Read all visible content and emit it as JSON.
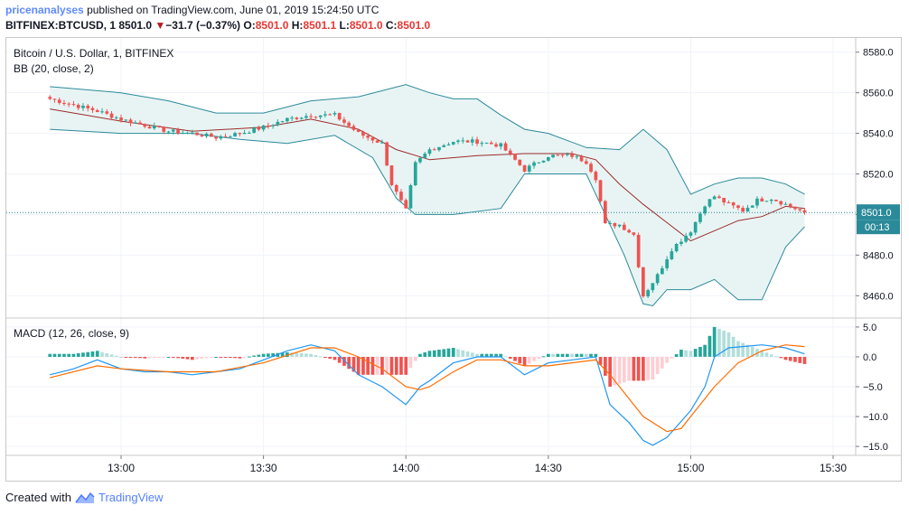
{
  "header": {
    "author": "pricenanalyses",
    "published": "published on TradingView.com, June 01, 2019 15:24:50 UTC",
    "symbol": "BITFINEX:BTCUSD, 1",
    "last": "8501.0",
    "arrow": "▼",
    "change": "−31.7 (−0.37%)",
    "o_label": "O:",
    "o_value": "8501.0",
    "h_label": "H:",
    "h_value": "8501.1",
    "l_label": "L:",
    "l_value": "8501.0",
    "c_label": "C:",
    "c_value": "8501.0"
  },
  "footer": {
    "created_with": "Created with",
    "brand": "TradingView"
  },
  "colors": {
    "up": "#26a69a",
    "down": "#ef5350",
    "bb_band": "#2b8a99",
    "bb_fill": "#e8f4f4",
    "bb_basis": "#9c2b2b",
    "macd_line": "#2196f3",
    "signal_line": "#ff6d00",
    "hist_up_strong": "#26a69a",
    "hist_up_weak": "#b2dfdb",
    "hist_down_strong": "#ef5350",
    "hist_down_weak": "#ffcdd2",
    "last_price_line": "#2b8a99"
  },
  "chart_data": [
    {
      "type": "candlestick",
      "title": "Bitcoin / U.S. Dollar, 1, BITFINEX",
      "indicator": "BB (20, close, 2)",
      "yticks": [
        8460.0,
        8480.0,
        8500.0,
        8520.0,
        8540.0,
        8560.0,
        8580.0
      ],
      "ytick_labels": [
        "8460.0",
        "8480.0",
        "8500.0",
        "8520.0",
        "8540.0",
        "8560.0",
        "8580.0"
      ],
      "ylim": [
        8449.0,
        8587.0
      ],
      "last_price": 8501.0,
      "last_price_label": "8501.0",
      "countdown": "00:13",
      "time_start": "12:45",
      "time_end": "15:24",
      "anchors": [
        [
          "12:45",
          8557
        ],
        [
          "12:50",
          8554
        ],
        [
          "12:55",
          8551
        ],
        [
          "13:00",
          8547
        ],
        [
          "13:05",
          8544
        ],
        [
          "13:10",
          8541
        ],
        [
          "13:15",
          8540
        ],
        [
          "13:20",
          8538
        ],
        [
          "13:25",
          8540
        ],
        [
          "13:30",
          8543
        ],
        [
          "13:35",
          8547
        ],
        [
          "13:40",
          8549
        ],
        [
          "13:45",
          8549
        ],
        [
          "13:50",
          8540
        ],
        [
          "13:55",
          8535
        ],
        [
          "13:57",
          8515
        ],
        [
          "14:00",
          8502
        ],
        [
          "14:02",
          8525
        ],
        [
          "14:05",
          8532
        ],
        [
          "14:10",
          8536
        ],
        [
          "14:15",
          8536
        ],
        [
          "14:20",
          8534
        ],
        [
          "14:25",
          8522
        ],
        [
          "14:30",
          8529
        ],
        [
          "14:35",
          8529
        ],
        [
          "14:38",
          8526
        ],
        [
          "14:40",
          8518
        ],
        [
          "14:42",
          8495
        ],
        [
          "14:45",
          8495
        ],
        [
          "14:48",
          8490
        ],
        [
          "14:50",
          8460
        ],
        [
          "14:53",
          8470
        ],
        [
          "14:56",
          8483
        ],
        [
          "15:00",
          8492
        ],
        [
          "15:03",
          8505
        ],
        [
          "15:05",
          8509
        ],
        [
          "15:08",
          8505
        ],
        [
          "15:11",
          8502
        ],
        [
          "15:14",
          8507
        ],
        [
          "15:17",
          8508
        ],
        [
          "15:20",
          8505
        ],
        [
          "15:22",
          8503
        ],
        [
          "15:24",
          8501
        ]
      ],
      "bb_upper": [
        [
          "12:45",
          8563
        ],
        [
          "13:00",
          8560
        ],
        [
          "13:10",
          8556
        ],
        [
          "13:20",
          8550
        ],
        [
          "13:30",
          8550
        ],
        [
          "13:40",
          8556
        ],
        [
          "13:50",
          8558
        ],
        [
          "14:00",
          8564
        ],
        [
          "14:05",
          8560
        ],
        [
          "14:10",
          8557
        ],
        [
          "14:15",
          8557
        ],
        [
          "14:20",
          8549
        ],
        [
          "14:25",
          8542
        ],
        [
          "14:30",
          8540
        ],
        [
          "14:38",
          8533
        ],
        [
          "14:45",
          8532
        ],
        [
          "14:50",
          8542
        ],
        [
          "14:55",
          8532
        ],
        [
          "15:00",
          8510
        ],
        [
          "15:05",
          8515
        ],
        [
          "15:10",
          8518
        ],
        [
          "15:15",
          8518
        ],
        [
          "15:20",
          8515
        ],
        [
          "15:24",
          8510
        ]
      ],
      "bb_basis": [
        [
          "12:45",
          8552
        ],
        [
          "13:00",
          8546
        ],
        [
          "13:15",
          8541
        ],
        [
          "13:30",
          8543
        ],
        [
          "13:40",
          8547
        ],
        [
          "13:50",
          8542
        ],
        [
          "13:58",
          8532
        ],
        [
          "14:05",
          8527
        ],
        [
          "14:15",
          8529
        ],
        [
          "14:25",
          8530
        ],
        [
          "14:35",
          8530
        ],
        [
          "14:40",
          8527
        ],
        [
          "14:45",
          8515
        ],
        [
          "14:50",
          8505
        ],
        [
          "14:55",
          8496
        ],
        [
          "15:00",
          8487
        ],
        [
          "15:05",
          8492
        ],
        [
          "15:10",
          8497
        ],
        [
          "15:15",
          8499
        ],
        [
          "15:20",
          8504
        ],
        [
          "15:24",
          8503
        ]
      ],
      "bb_lower": [
        [
          "12:45",
          8542
        ],
        [
          "13:00",
          8540
        ],
        [
          "13:15",
          8540
        ],
        [
          "13:25",
          8537
        ],
        [
          "13:35",
          8535
        ],
        [
          "13:45",
          8539
        ],
        [
          "13:53",
          8528
        ],
        [
          "13:58",
          8508
        ],
        [
          "14:02",
          8500
        ],
        [
          "14:10",
          8500
        ],
        [
          "14:20",
          8503
        ],
        [
          "14:25",
          8520
        ],
        [
          "14:30",
          8520
        ],
        [
          "14:38",
          8520
        ],
        [
          "14:42",
          8500
        ],
        [
          "14:46",
          8480
        ],
        [
          "14:50",
          8456
        ],
        [
          "14:52",
          8455
        ],
        [
          "14:55",
          8463
        ],
        [
          "15:00",
          8463
        ],
        [
          "15:05",
          8468
        ],
        [
          "15:10",
          8458
        ],
        [
          "15:15",
          8458
        ],
        [
          "15:20",
          8484
        ],
        [
          "15:24",
          8494
        ]
      ]
    },
    {
      "type": "macd",
      "title": "MACD (12, 26, close, 9)",
      "yticks": [
        5.0,
        0.0,
        -5.0,
        -10.0,
        -15.0
      ],
      "ytick_labels": [
        "5.0",
        "0.0",
        "−5.0",
        "−10.0",
        "−15.0"
      ],
      "ylim": [
        -16.5,
        6.5
      ],
      "xticks": [
        "13:00",
        "13:30",
        "14:00",
        "14:30",
        "15:00",
        "15:30"
      ],
      "macd": [
        [
          "12:45",
          -3
        ],
        [
          "12:50",
          -2
        ],
        [
          "12:55",
          -0.5
        ],
        [
          "13:00",
          -2
        ],
        [
          "13:05",
          -2.5
        ],
        [
          "13:10",
          -2.5
        ],
        [
          "13:15",
          -3
        ],
        [
          "13:20",
          -2.5
        ],
        [
          "13:25",
          -2
        ],
        [
          "13:30",
          -0.5
        ],
        [
          "13:35",
          1
        ],
        [
          "13:40",
          2
        ],
        [
          "13:45",
          1
        ],
        [
          "13:50",
          -3
        ],
        [
          "13:55",
          -5
        ],
        [
          "14:00",
          -8
        ],
        [
          "14:03",
          -5
        ],
        [
          "14:05",
          -4
        ],
        [
          "14:10",
          -1
        ],
        [
          "14:15",
          0
        ],
        [
          "14:20",
          0
        ],
        [
          "14:25",
          -3
        ],
        [
          "14:30",
          -1
        ],
        [
          "14:35",
          -0.5
        ],
        [
          "14:40",
          0
        ],
        [
          "14:43",
          -8
        ],
        [
          "14:47",
          -11
        ],
        [
          "14:50",
          -14
        ],
        [
          "14:52",
          -14.8
        ],
        [
          "14:55",
          -13.5
        ],
        [
          "15:00",
          -9
        ],
        [
          "15:03",
          -5
        ],
        [
          "15:05",
          0
        ],
        [
          "15:08",
          1.5
        ],
        [
          "15:12",
          1.8
        ],
        [
          "15:15",
          2
        ],
        [
          "15:20",
          1.5
        ],
        [
          "15:24",
          0.5
        ]
      ],
      "signal": [
        [
          "12:45",
          -3.5
        ],
        [
          "12:55",
          -1.5
        ],
        [
          "13:00",
          -2
        ],
        [
          "13:10",
          -2.5
        ],
        [
          "13:20",
          -2.5
        ],
        [
          "13:30",
          -1
        ],
        [
          "13:40",
          1.5
        ],
        [
          "13:45",
          1.5
        ],
        [
          "13:50",
          0
        ],
        [
          "13:55",
          -2
        ],
        [
          "14:00",
          -5
        ],
        [
          "14:03",
          -5.5
        ],
        [
          "14:05",
          -5
        ],
        [
          "14:10",
          -2.5
        ],
        [
          "14:15",
          -0.5
        ],
        [
          "14:20",
          -0.5
        ],
        [
          "14:25",
          -1.5
        ],
        [
          "14:30",
          -1.5
        ],
        [
          "14:35",
          -1
        ],
        [
          "14:40",
          -0.5
        ],
        [
          "14:43",
          -3
        ],
        [
          "14:47",
          -7
        ],
        [
          "14:50",
          -10
        ],
        [
          "14:55",
          -12.5
        ],
        [
          "14:58",
          -12
        ],
        [
          "15:00",
          -10
        ],
        [
          "15:05",
          -5
        ],
        [
          "15:10",
          -1
        ],
        [
          "15:15",
          1
        ],
        [
          "15:20",
          2
        ],
        [
          "15:24",
          1.7
        ]
      ]
    }
  ]
}
